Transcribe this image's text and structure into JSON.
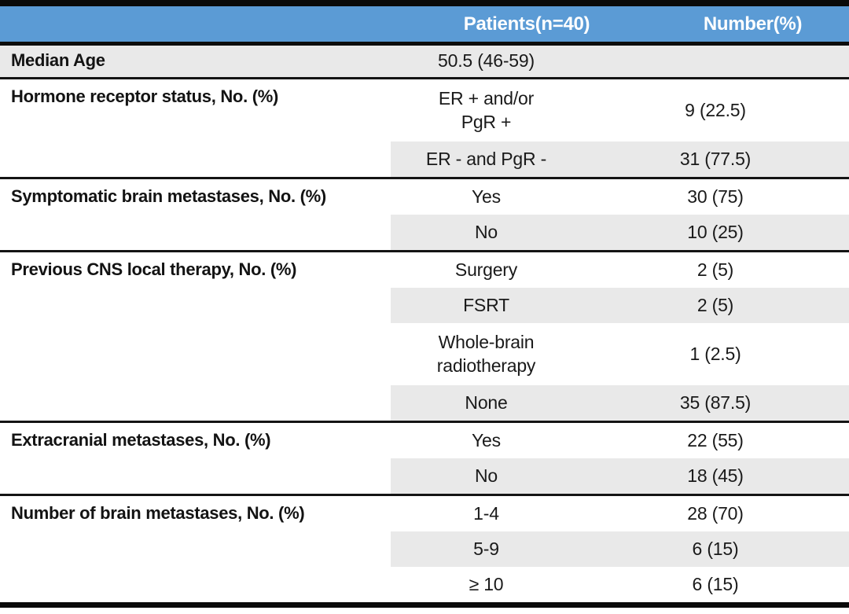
{
  "title": "Patient characteristics table",
  "colors": {
    "header_bg": "#5B9BD5",
    "header_text": "#FFFFFF",
    "band_gray": "#E9E9E9",
    "rule_black": "#0A0A0A"
  },
  "header": {
    "patients": "Patients(n=40)",
    "number": "Number(%)"
  },
  "groups": [
    {
      "label": "Median Age",
      "rows": [
        {
          "patients": "50.5 (46-59)",
          "number": ""
        }
      ]
    },
    {
      "label": "Hormone receptor status, No. (%)",
      "rows": [
        {
          "patients": "ER + and/or\nPgR +",
          "number": "9 (22.5)"
        },
        {
          "patients": "ER - and PgR -",
          "number": "31 (77.5)"
        }
      ]
    },
    {
      "label": "Symptomatic brain metastases, No. (%)",
      "rows": [
        {
          "patients": "Yes",
          "number": "30 (75)"
        },
        {
          "patients": "No",
          "number": "10 (25)"
        }
      ]
    },
    {
      "label": "Previous CNS local therapy, No. (%)",
      "rows": [
        {
          "patients": "Surgery",
          "number": "2 (5)"
        },
        {
          "patients": "FSRT",
          "number": "2 (5)"
        },
        {
          "patients": "Whole-brain\nradiotherapy",
          "number": "1 (2.5)"
        },
        {
          "patients": "None",
          "number": "35 (87.5)"
        }
      ]
    },
    {
      "label": "Extracranial metastases, No. (%)",
      "rows": [
        {
          "patients": "Yes",
          "number": "22 (55)"
        },
        {
          "patients": "No",
          "number": "18 (45)"
        }
      ]
    },
    {
      "label": "Number of brain metastases, No. (%)",
      "rows": [
        {
          "patients": "1-4",
          "number": "28 (70)"
        },
        {
          "patients": "5-9",
          "number": "6 (15)"
        },
        {
          "patients": "≥ 10",
          "number": "6 (15)"
        }
      ]
    }
  ]
}
